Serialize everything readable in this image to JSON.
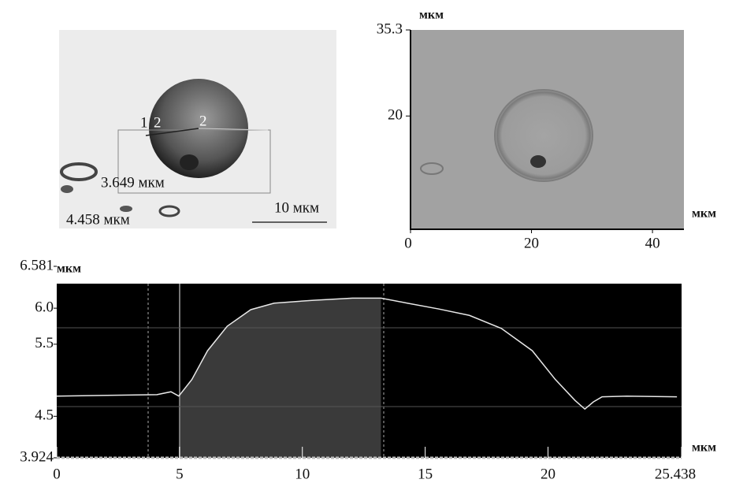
{
  "micrograph": {
    "point_labels": [
      "1",
      "2",
      "2"
    ],
    "lengths": [
      "3.649 мкм",
      "4.458 мкм"
    ],
    "scale_bar": "10 мкм"
  },
  "chart_data": [
    {
      "type": "image",
      "xlabel": "мкм",
      "ylabel": "мкм",
      "xlim": [
        0,
        45.2
      ],
      "ylim": [
        0,
        35.3
      ],
      "xticks": [
        0,
        20,
        40
      ],
      "yticks": [
        20,
        35.3
      ]
    },
    {
      "type": "line",
      "xlabel": "мкм",
      "ylabel": "мкм",
      "color": "#e8e8e8",
      "xlim": [
        0,
        25.438
      ],
      "ylim": [
        3.924,
        6.581
      ],
      "xticks": [
        0,
        5,
        10,
        15,
        20,
        25.438
      ],
      "yticks": [
        3.924,
        4.5,
        5.5,
        {
          "value": 6,
          "label": "6.0"
        },
        6.581
      ],
      "x": [
        0,
        4.08,
        4.65,
        4.97,
        5.5,
        6.14,
        6.94,
        7.9,
        8.85,
        10.45,
        12.04,
        13.2,
        14.27,
        15.54,
        16.8,
        18.1,
        19.36,
        20.3,
        21.1,
        21.5,
        21.85,
        22.2,
        23.2,
        25.25
      ],
      "values": [
        4.78,
        4.8,
        4.84,
        4.78,
        5.01,
        5.41,
        5.75,
        5.98,
        6.07,
        6.11,
        6.14,
        6.14,
        6.07,
        5.99,
        5.9,
        5.72,
        5.41,
        5.01,
        4.72,
        4.6,
        4.7,
        4.77,
        4.78,
        4.77
      ]
    }
  ]
}
